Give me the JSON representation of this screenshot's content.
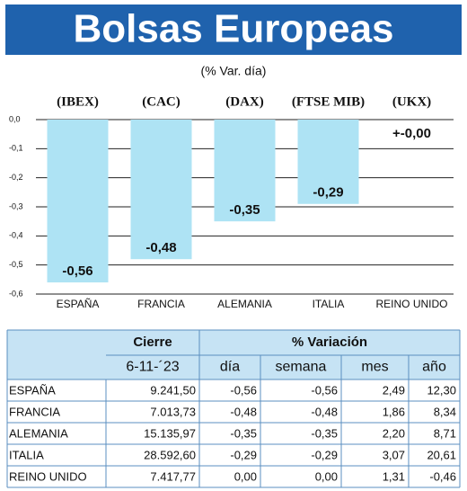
{
  "chart_data": {
    "type": "bar",
    "title": "Bolsas Europeas",
    "subtitle": "(% Var. día)",
    "indices": [
      "(IBEX)",
      "(CAC)",
      "(DAX)",
      "(FTSE MIB)",
      "(UKX)"
    ],
    "categories": [
      "ESPAÑA",
      "FRANCIA",
      "ALEMANIA",
      "ITALIA",
      "REINO UNIDO"
    ],
    "values": [
      -0.56,
      -0.48,
      -0.35,
      -0.29,
      0
    ],
    "value_labels": [
      "-0,56",
      "-0,48",
      "-0,35",
      "-0,29",
      "+-0,00"
    ],
    "color": "#aee3f4",
    "ylim": [
      -0.6,
      0
    ],
    "yticks": [
      {
        "value": 0,
        "label": "0,0"
      },
      {
        "value": -0.1,
        "label": "-0,1"
      },
      {
        "value": -0.2,
        "label": "-0,2"
      },
      {
        "value": -0.3,
        "label": "-0,3"
      },
      {
        "value": -0.4,
        "label": "-0,4"
      },
      {
        "value": -0.5,
        "label": "-0,5"
      },
      {
        "value": -0.6,
        "label": "-0,6"
      }
    ],
    "grid": true
  },
  "table": {
    "header": [
      "Cierre",
      "% Variación"
    ],
    "columns": [
      "6-11-´23",
      "día",
      "semana",
      "mes",
      "año"
    ],
    "rows": [
      [
        "ESPAÑA",
        "9.241,50",
        "-0,56",
        "-0,56",
        "2,49",
        "12,30"
      ],
      [
        "FRANCIA",
        "7.013,73",
        "-0,48",
        "-0,48",
        "1,86",
        "8,34"
      ],
      [
        "ALEMANIA",
        "15.135,97",
        "-0,35",
        "-0,35",
        "2,20",
        "8,71"
      ],
      [
        "ITALIA",
        "28.592,60",
        "-0,29",
        "-0,29",
        "3,07",
        "20,61"
      ],
      [
        "REINO UNIDO",
        "7.417,77",
        "0,00",
        "0,00",
        "1,31",
        "-0,46"
      ]
    ]
  }
}
